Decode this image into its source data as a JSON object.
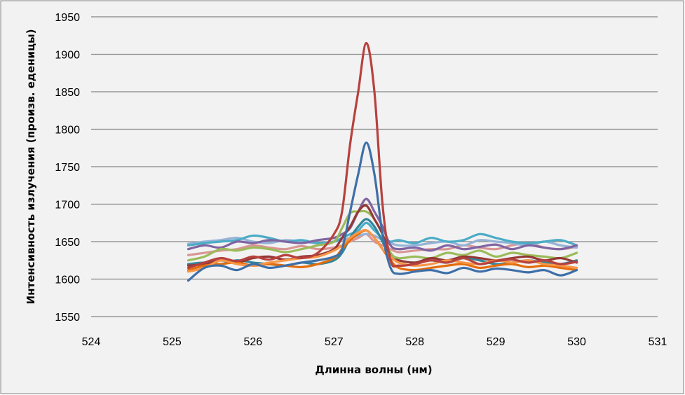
{
  "chart_data": {
    "type": "line",
    "title": "",
    "xlabel": "Длинна волны (нм)",
    "ylabel": "Интенсивность излучения (произв. еденицы)",
    "xlim": [
      524,
      531
    ],
    "ylim": [
      1550,
      1950
    ],
    "xticks": [
      "524",
      "525",
      "526",
      "527",
      "528",
      "529",
      "530",
      "531"
    ],
    "yticks": [
      "1550",
      "1600",
      "1650",
      "1700",
      "1750",
      "1800",
      "1850",
      "1900",
      "1950"
    ],
    "grid": "horizontal",
    "legend": "none",
    "background": "#f2f2f2",
    "x": [
      525.2,
      525.4,
      525.6,
      525.8,
      526.0,
      526.2,
      526.4,
      526.6,
      526.8,
      527.0,
      527.1,
      527.2,
      527.3,
      527.4,
      527.5,
      527.6,
      527.7,
      527.8,
      528.0,
      528.2,
      528.4,
      528.6,
      528.8,
      529.0,
      529.2,
      529.4,
      529.6,
      529.8,
      530.0
    ],
    "series": [
      {
        "color": "#D99694",
        "values": [
          1632,
          1635,
          1638,
          1640,
          1645,
          1642,
          1640,
          1644,
          1640,
          1642,
          1645,
          1650,
          1655,
          1660,
          1650,
          1645,
          1640,
          1636,
          1638,
          1640,
          1640,
          1645,
          1642,
          1640,
          1645,
          1648,
          1642,
          1640,
          1643
        ]
      },
      {
        "color": "#95B3D7",
        "values": [
          1647,
          1650,
          1652,
          1655,
          1650,
          1648,
          1652,
          1650,
          1648,
          1650,
          1652,
          1655,
          1658,
          1660,
          1658,
          1652,
          1648,
          1645,
          1645,
          1648,
          1650,
          1645,
          1652,
          1650,
          1648,
          1645,
          1650,
          1645,
          1642
        ]
      },
      {
        "color": "#4BACC6",
        "values": [
          1645,
          1648,
          1650,
          1652,
          1658,
          1655,
          1650,
          1652,
          1648,
          1650,
          1655,
          1660,
          1665,
          1675,
          1665,
          1655,
          1650,
          1652,
          1648,
          1655,
          1650,
          1652,
          1660,
          1655,
          1650,
          1648,
          1650,
          1652,
          1645
        ]
      },
      {
        "color": "#8064A2",
        "values": [
          1640,
          1645,
          1642,
          1650,
          1648,
          1652,
          1650,
          1648,
          1652,
          1655,
          1660,
          1668,
          1690,
          1707,
          1690,
          1670,
          1645,
          1640,
          1642,
          1638,
          1645,
          1640,
          1643,
          1646,
          1640,
          1645,
          1642,
          1640,
          1645
        ]
      },
      {
        "color": "#9BBB59",
        "values": [
          1625,
          1630,
          1640,
          1638,
          1642,
          1640,
          1636,
          1640,
          1645,
          1650,
          1668,
          1688,
          1690,
          1690,
          1680,
          1660,
          1635,
          1628,
          1630,
          1628,
          1635,
          1632,
          1638,
          1630,
          1635,
          1632,
          1630,
          1628,
          1635
        ]
      },
      {
        "color": "#31859C",
        "values": [
          1620,
          1622,
          1620,
          1625,
          1622,
          1620,
          1618,
          1622,
          1620,
          1625,
          1635,
          1655,
          1670,
          1680,
          1670,
          1650,
          1630,
          1625,
          1622,
          1625,
          1622,
          1628,
          1625,
          1620,
          1622,
          1625,
          1622,
          1620,
          1625
        ]
      },
      {
        "color": "#953735",
        "values": [
          1618,
          1620,
          1625,
          1622,
          1628,
          1630,
          1626,
          1630,
          1632,
          1640,
          1655,
          1670,
          1690,
          1698,
          1680,
          1660,
          1630,
          1625,
          1622,
          1628,
          1625,
          1630,
          1628,
          1625,
          1628,
          1630,
          1625,
          1628,
          1622
        ]
      },
      {
        "color": "#E46C0A",
        "values": [
          1612,
          1618,
          1620,
          1622,
          1618,
          1620,
          1618,
          1616,
          1620,
          1628,
          1640,
          1652,
          1660,
          1665,
          1655,
          1640,
          1625,
          1615,
          1612,
          1615,
          1618,
          1620,
          1615,
          1618,
          1620,
          1616,
          1618,
          1615,
          1612
        ]
      },
      {
        "color": "#F79646",
        "values": [
          1610,
          1615,
          1625,
          1620,
          1618,
          1622,
          1625,
          1628,
          1630,
          1638,
          1645,
          1655,
          1662,
          1665,
          1655,
          1640,
          1630,
          1622,
          1618,
          1620,
          1625,
          1622,
          1620,
          1625,
          1622,
          1625,
          1620,
          1618,
          1615
        ]
      },
      {
        "color": "#3E6FA8",
        "values": [
          1598,
          1615,
          1618,
          1612,
          1620,
          1615,
          1618,
          1622,
          1625,
          1630,
          1640,
          1690,
          1740,
          1782,
          1740,
          1660,
          1615,
          1607,
          1610,
          1612,
          1608,
          1615,
          1610,
          1614,
          1612,
          1609,
          1612,
          1605,
          1612
        ]
      },
      {
        "color": "#B7413E",
        "values": [
          1615,
          1622,
          1628,
          1624,
          1630,
          1626,
          1632,
          1628,
          1635,
          1660,
          1690,
          1780,
          1850,
          1915,
          1850,
          1700,
          1625,
          1618,
          1620,
          1625,
          1622,
          1628,
          1620,
          1624,
          1626,
          1622,
          1625,
          1620,
          1623
        ]
      }
    ]
  }
}
